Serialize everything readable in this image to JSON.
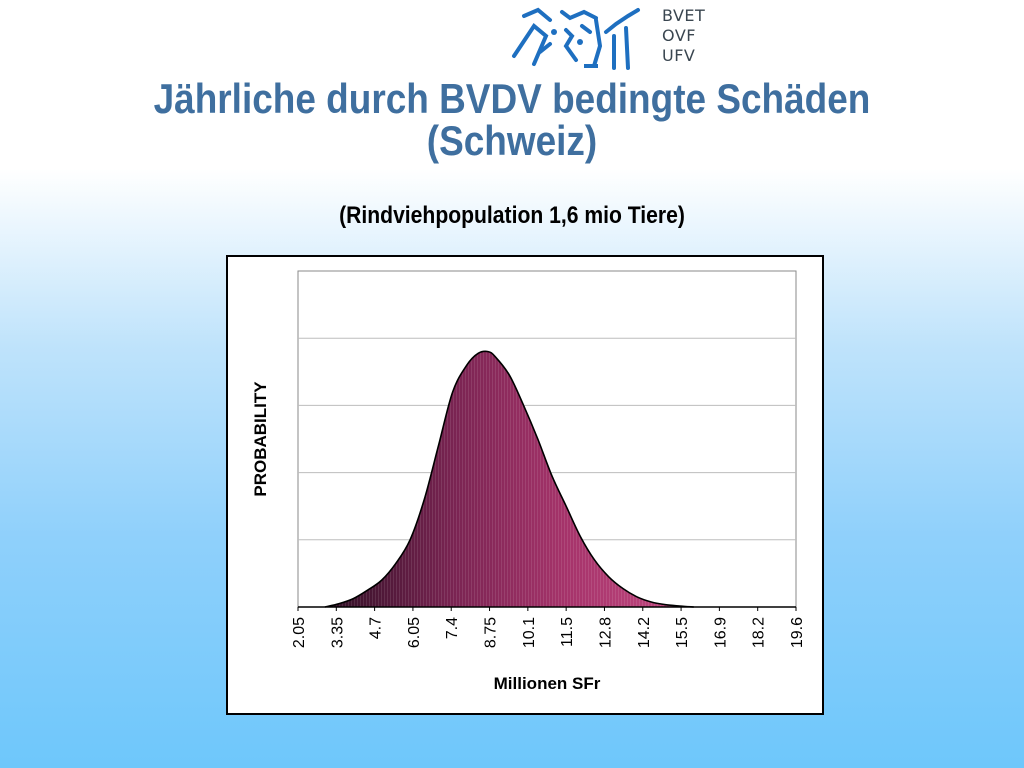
{
  "logo": {
    "lines": [
      "BVET",
      "OVF",
      "UFV"
    ]
  },
  "header": {
    "title_line1": "Jährliche durch BVDV bedingte Schäden",
    "title_line2": "(Schweiz)",
    "subtitle": "(Rindviehpopulation 1,6 mio Tiere)"
  },
  "colors": {
    "title": "#3f6f9f",
    "fill_dark": "#4a1a38",
    "fill_light": "#b33a72",
    "logo_blue": "#1e6fc0"
  },
  "chart_data": {
    "type": "area",
    "title": "",
    "xlabel": "Millionen SFr",
    "ylabel": "PROBABILITY",
    "x_tick_labels": [
      "2.05",
      "3.35",
      "4.7",
      "6.05",
      "7.4",
      "8.75",
      "10.1",
      "11.5",
      "12.8",
      "14.2",
      "15.5",
      "16.9",
      "18.2",
      "19.6"
    ],
    "xlim": [
      2.05,
      19.6
    ],
    "ylim": [
      0,
      1.0
    ],
    "grid": true,
    "y_gridlines": 5,
    "points": [
      [
        3.0,
        0.0
      ],
      [
        3.5,
        0.01
      ],
      [
        4.0,
        0.025
      ],
      [
        4.5,
        0.05
      ],
      [
        5.0,
        0.08
      ],
      [
        5.5,
        0.13
      ],
      [
        6.0,
        0.2
      ],
      [
        6.5,
        0.32
      ],
      [
        7.0,
        0.48
      ],
      [
        7.5,
        0.64
      ],
      [
        8.0,
        0.72
      ],
      [
        8.4,
        0.755
      ],
      [
        8.75,
        0.76
      ],
      [
        9.0,
        0.745
      ],
      [
        9.5,
        0.69
      ],
      [
        10.0,
        0.6
      ],
      [
        10.5,
        0.5
      ],
      [
        11.0,
        0.39
      ],
      [
        11.5,
        0.3
      ],
      [
        12.0,
        0.21
      ],
      [
        12.5,
        0.14
      ],
      [
        13.0,
        0.09
      ],
      [
        13.5,
        0.055
      ],
      [
        14.0,
        0.03
      ],
      [
        14.5,
        0.015
      ],
      [
        15.0,
        0.007
      ],
      [
        15.5,
        0.003
      ],
      [
        16.0,
        0.0
      ]
    ]
  }
}
